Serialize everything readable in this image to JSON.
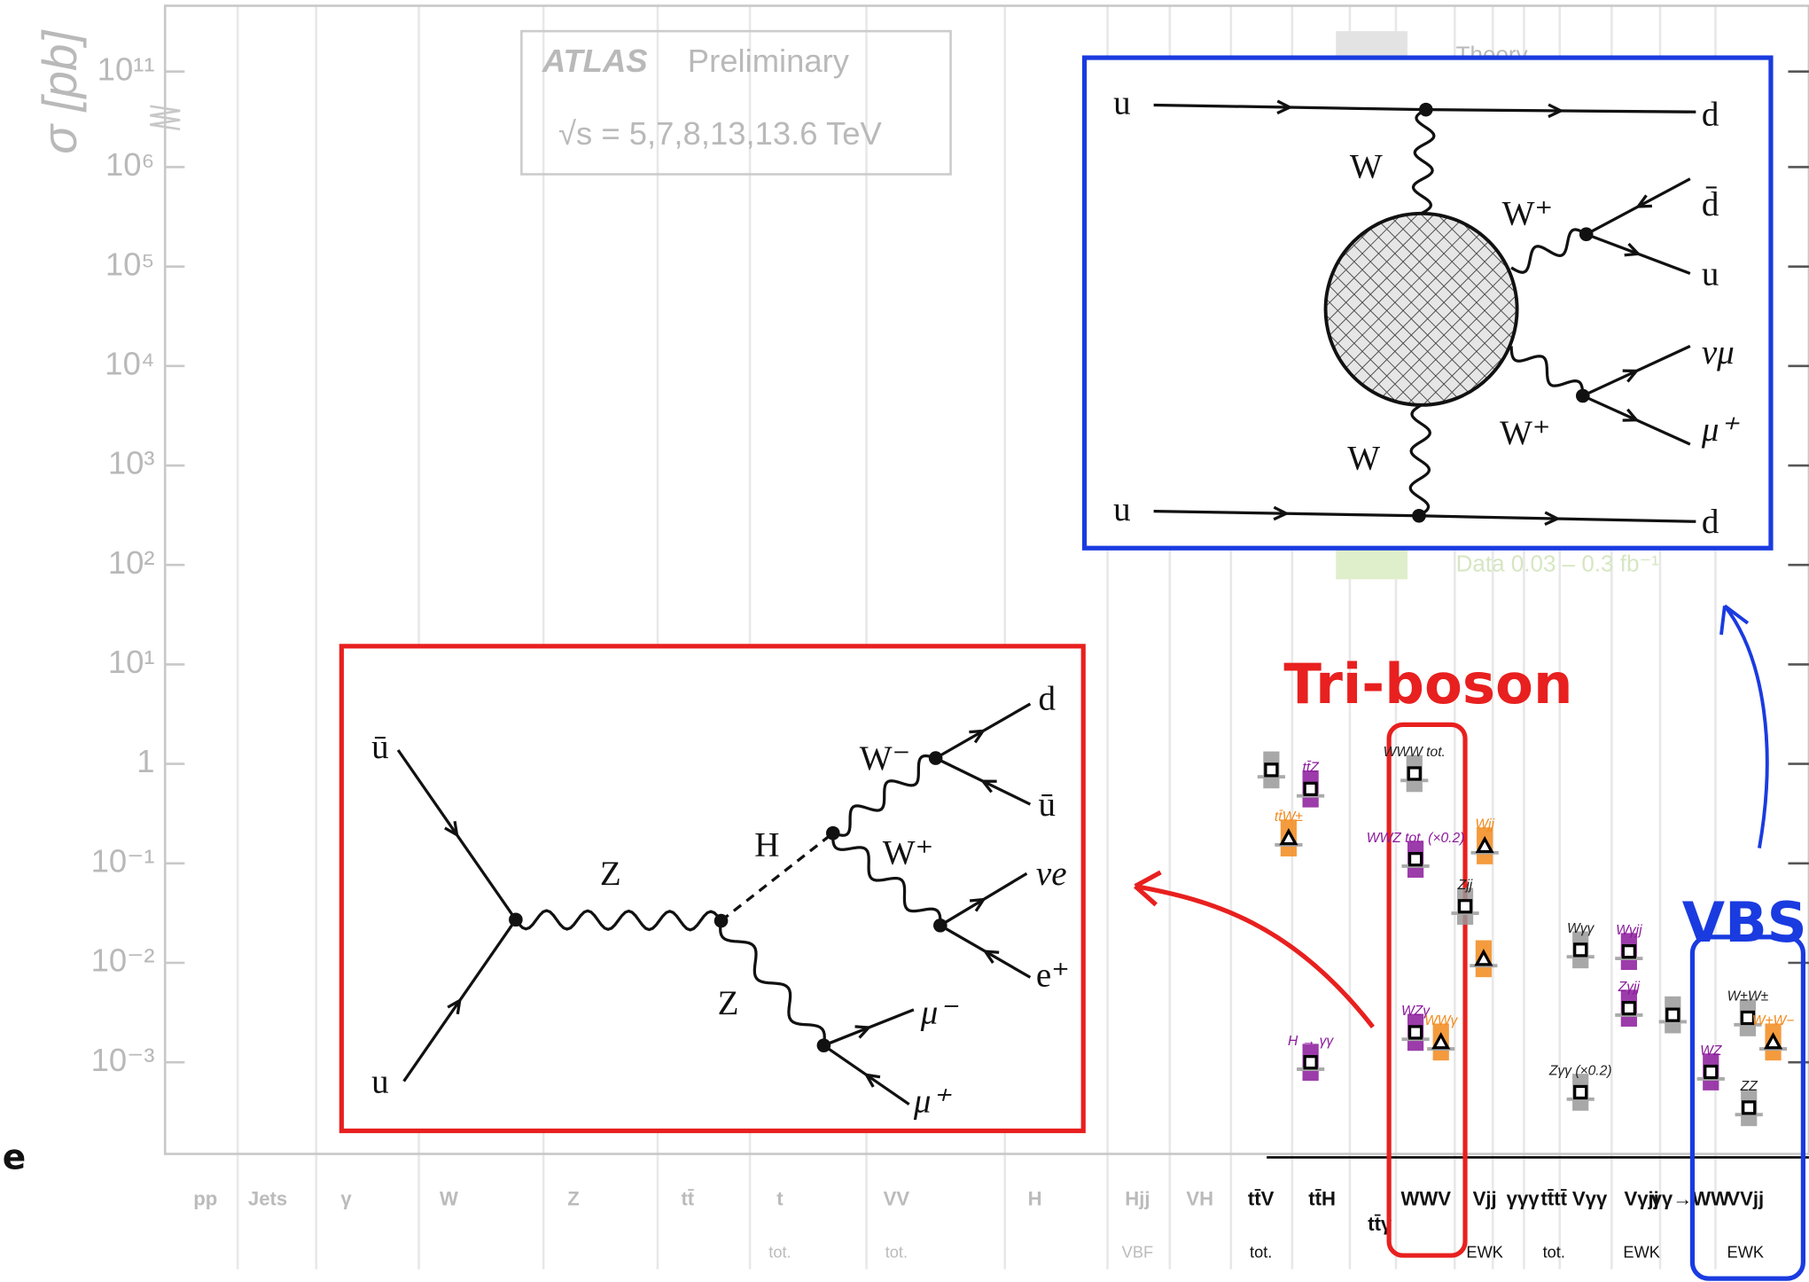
{
  "chart": {
    "type": "scatter",
    "log_scale": true,
    "y_axis": {
      "label": "σ [pb]",
      "ticks": [
        {
          "value": 100000000000,
          "label": "10¹¹"
        },
        {
          "value": 1000000,
          "label": "10⁶"
        },
        {
          "value": 100000,
          "label": "10⁵"
        },
        {
          "value": 10000,
          "label": "10⁴"
        },
        {
          "value": 1000,
          "label": "10³"
        },
        {
          "value": 100,
          "label": "10²"
        },
        {
          "value": 10,
          "label": "10¹"
        },
        1,
        {
          "value": 0.1,
          "label": "10⁻¹"
        },
        {
          "value": 0.01,
          "label": "10⁻²"
        },
        {
          "value": 0.001,
          "label": "10⁻³"
        }
      ]
    },
    "legend": {
      "experiment": "ATLAS",
      "status": "Preliminary",
      "energy": "√s = 5,7,8,13,13.6 TeV",
      "theory": "Theory",
      "data": "Data  0.03 – 0.3 fb⁻¹"
    },
    "categories": [
      {
        "name": "pp"
      },
      {
        "name": "Jets"
      },
      {
        "name": "γ"
      },
      {
        "name": "W"
      },
      {
        "name": "Z"
      },
      {
        "name": "tt̄"
      },
      {
        "name": "t",
        "sub": "tot."
      },
      {
        "name": "VV",
        "sub": "tot."
      },
      {
        "name": "H"
      },
      {
        "name": "Hjj",
        "sub": "VBF"
      },
      {
        "name": "VH"
      },
      {
        "name": "tt̄V",
        "sub": "tot."
      },
      {
        "name": "tt̄H"
      },
      {
        "name": "tt̄γ"
      },
      {
        "name": "WWV"
      },
      {
        "name": "Vjj",
        "sub": "EWK"
      },
      {
        "name": "γγγ"
      },
      {
        "name": "tt̄tt̄",
        "sub": "tot."
      },
      {
        "name": "Vγγ"
      },
      {
        "name": "Vγjj",
        "sub": "EWK"
      },
      {
        "name": "γγ→WW"
      },
      {
        "name": "VVjj",
        "sub": "EWK"
      }
    ],
    "points": [
      {
        "label": "tt̄Z",
        "value": 0.56,
        "marker": "square",
        "color": "#8b1a9b"
      },
      {
        "label": "tt̄W±",
        "value": 0.18,
        "marker": "triangle",
        "color": "#f28a1c"
      },
      {
        "value": 0.87,
        "marker": "square",
        "color": "#999999"
      },
      {
        "label": "WWW tot.",
        "value": 0.8,
        "marker": "square",
        "color": "#999999"
      },
      {
        "label": "WWZ tot. (×0.2)",
        "value": 0.11,
        "marker": "square",
        "color": "#8b1a9b"
      },
      {
        "label": "Wjj",
        "value": 0.15,
        "marker": "triangle",
        "color": "#f28a1c"
      },
      {
        "label": "Zjj",
        "value": 0.037,
        "marker": "square",
        "color": "#999999"
      },
      {
        "value": 0.011,
        "marker": "triangle",
        "color": "#f28a1c"
      },
      {
        "label": "WZγ",
        "value": 0.002,
        "marker": "square",
        "color": "#8b1a9b"
      },
      {
        "label": "WWγ",
        "value": 0.0016,
        "marker": "triangle",
        "color": "#f28a1c"
      },
      {
        "label": "H → γγ",
        "value": 0.001,
        "marker": "square",
        "color": "#8b1a9b"
      },
      {
        "label": "Wγγ",
        "value": 0.0135,
        "marker": "square",
        "color": "#999999"
      },
      {
        "label": "Wγjj",
        "value": 0.013,
        "marker": "square",
        "color": "#8b1a9b"
      },
      {
        "label": "Zγγ (×0.2)",
        "value": 0.0005,
        "marker": "square",
        "color": "#999999"
      },
      {
        "label": "Zγjj",
        "value": 0.0035,
        "marker": "square",
        "color": "#8b1a9b"
      },
      {
        "value": 0.003,
        "marker": "square",
        "color": "#999999"
      },
      {
        "label": "W±W±",
        "value": 0.0028,
        "marker": "square",
        "color": "#999999"
      },
      {
        "label": "W+W−",
        "value": 0.0016,
        "marker": "triangle",
        "color": "#f28a1c"
      },
      {
        "label": "WZ",
        "value": 0.0008,
        "marker": "square",
        "color": "#8b1a9b"
      },
      {
        "label": "ZZ",
        "value": 0.00035,
        "marker": "square",
        "color": "#999999"
      }
    ]
  },
  "annotations": {
    "triboson": "Tri-boson",
    "vbs": "VBS",
    "fragment": "e"
  },
  "diagram_red": {
    "labels": [
      "ū",
      "u",
      "Z",
      "Z",
      "H",
      "W⁻",
      "W⁺",
      "d",
      "ū",
      "νe",
      "e⁺",
      "μ⁻",
      "μ⁺"
    ]
  },
  "diagram_blue": {
    "labels": [
      "u",
      "u",
      "W",
      "W",
      "W⁺",
      "W⁺",
      "d",
      "d̄",
      "u",
      "νμ",
      "μ⁺",
      "d"
    ]
  }
}
